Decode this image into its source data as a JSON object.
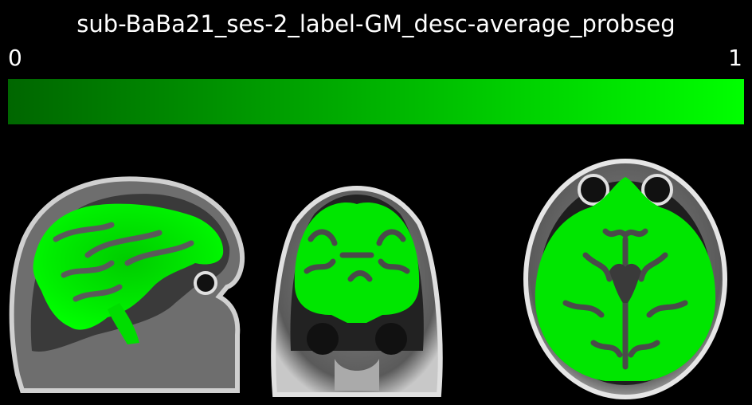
{
  "title": "sub-BaBa21_ses-2_label-GM_desc-average_probseg",
  "colorbar": {
    "min_label": "0",
    "max_label": "1",
    "colors": {
      "start": "#006600",
      "end": "#00ff00"
    }
  },
  "views": [
    "sagittal",
    "coronal",
    "axial"
  ],
  "colors": {
    "background": "#000000",
    "overlay": "#00ee00",
    "tissue_light": "#d9d9d9",
    "tissue_dark": "#2a2a2a"
  }
}
